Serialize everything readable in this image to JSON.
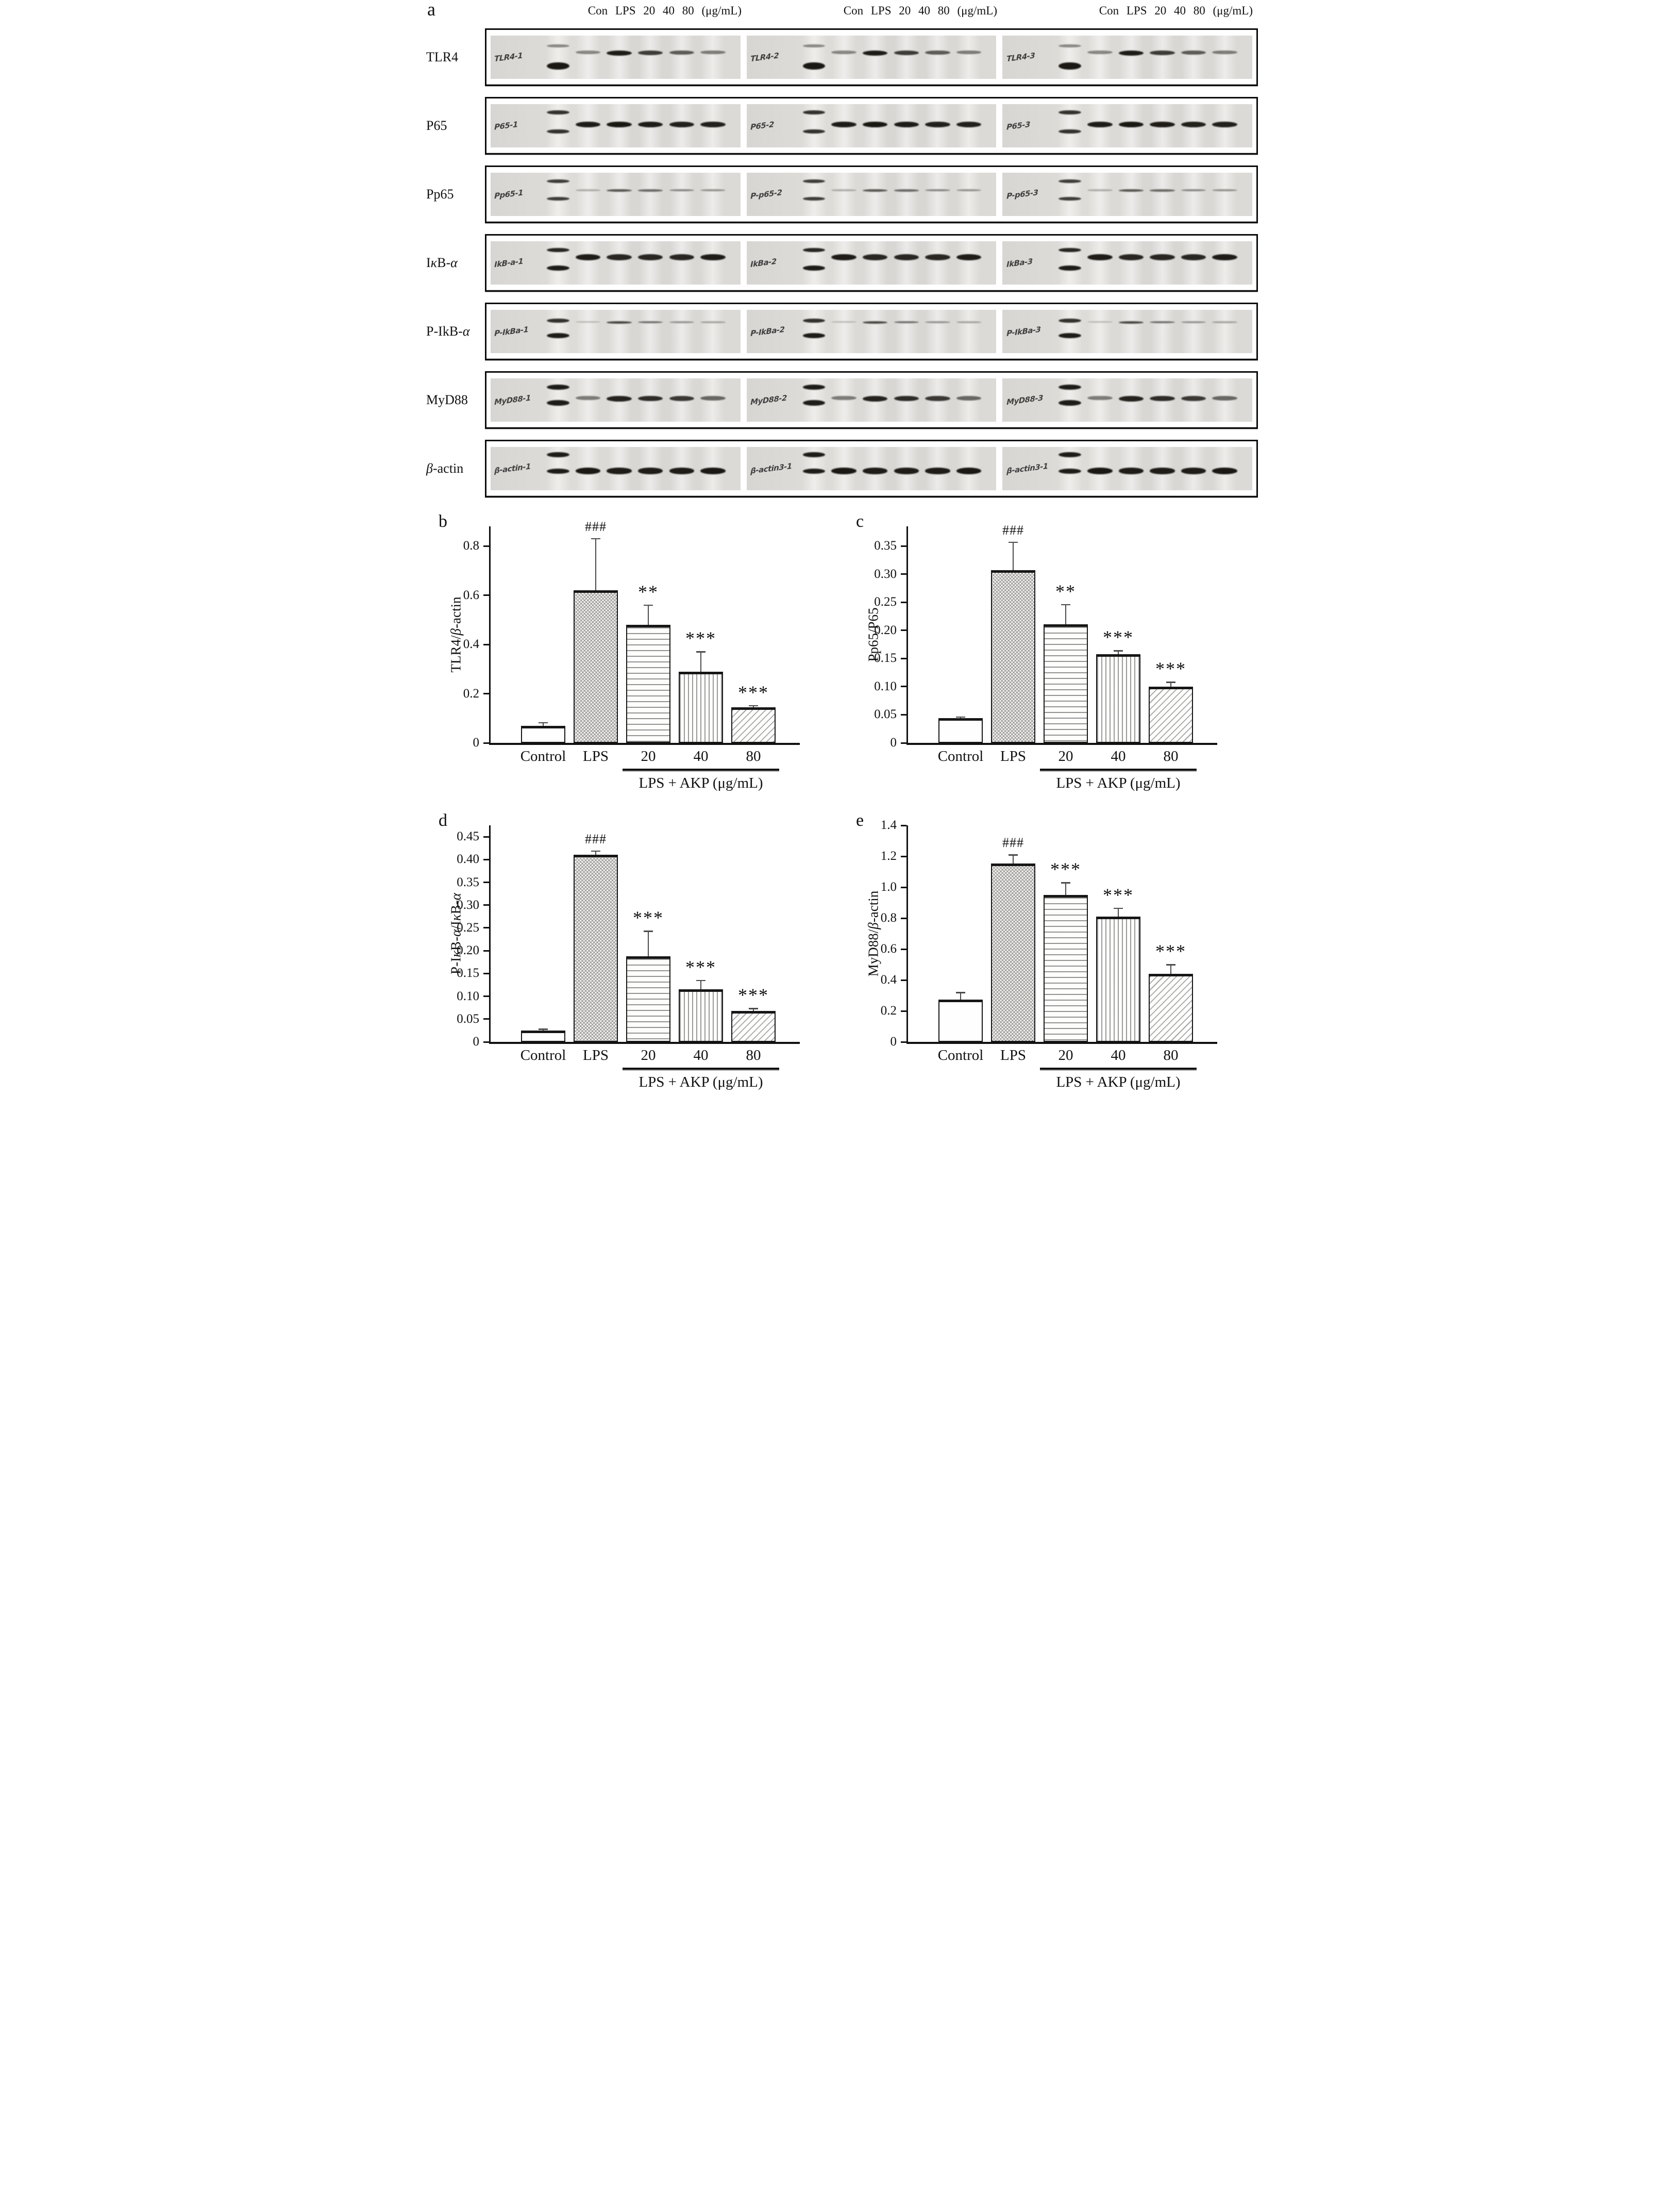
{
  "panel_a": {
    "label": "a",
    "column_headers": [
      "Con LPS 20  40  80 (μg/mL)",
      "Con LPS 20  40  80 (μg/mL)",
      "Con LPS 20  40  80 (μg/mL)"
    ],
    "rows": [
      {
        "label": "TLR4",
        "replicates": [
          "TLR4-1",
          "TLR4-2",
          "TLR4-3"
        ],
        "ladder": {
          "top_y": 20,
          "top_h": 6,
          "top_s": 0.45,
          "bot_y": 62,
          "bot_h": 14,
          "bot_s": 0.97
        },
        "bands": {
          "y": 34,
          "h": 9,
          "strengths": [
            0.45,
            0.95,
            0.8,
            0.65,
            0.5
          ]
        }
      },
      {
        "label": "P65",
        "replicates": [
          "P65-1",
          "P65-2",
          "P65-3"
        ],
        "ladder": {
          "top_y": 14,
          "top_h": 8,
          "top_s": 0.85,
          "bot_y": 58,
          "bot_h": 8,
          "bot_s": 0.85
        },
        "bands": {
          "y": 40,
          "h": 10,
          "strengths": [
            0.95,
            0.97,
            0.95,
            0.93,
            0.93
          ]
        }
      },
      {
        "label": "Pp65",
        "replicates": [
          "Pp65-1",
          "P-p65-2",
          "P-p65-3"
        ],
        "ladder": {
          "top_y": 16,
          "top_h": 7,
          "top_s": 0.8,
          "bot_y": 56,
          "bot_h": 7,
          "bot_s": 0.8
        },
        "bands": {
          "y": 38,
          "h": 5,
          "strengths": [
            0.28,
            0.68,
            0.58,
            0.45,
            0.4
          ]
        }
      },
      {
        "label": "IκB-α",
        "replicates": [
          "IkB-a-1",
          "IkBa-2",
          "IkBa-3"
        ],
        "ladder": {
          "top_y": 16,
          "top_h": 8,
          "top_s": 0.9,
          "bot_y": 56,
          "bot_h": 10,
          "bot_s": 0.95
        },
        "bands": {
          "y": 30,
          "h": 11,
          "strengths": [
            0.95,
            0.9,
            0.9,
            0.9,
            0.95
          ]
        }
      },
      {
        "label": "P-IkB-α",
        "replicates": [
          "P-IkBa-1",
          "P-IkBa-2",
          "P-IkBa-3"
        ],
        "ladder": {
          "top_y": 20,
          "top_h": 8,
          "top_s": 0.85,
          "bot_y": 54,
          "bot_h": 10,
          "bot_s": 0.95
        },
        "bands": {
          "y": 26,
          "h": 5,
          "strengths": [
            0.22,
            0.75,
            0.55,
            0.38,
            0.3
          ]
        }
      },
      {
        "label": "MyD88",
        "replicates": [
          "MyD88-1",
          "MyD88-2",
          "MyD88-3"
        ],
        "ladder": {
          "top_y": 14,
          "top_h": 10,
          "top_s": 0.95,
          "bot_y": 50,
          "bot_h": 11,
          "bot_s": 0.95
        },
        "bands": {
          "y": 40,
          "h": 10,
          "strengths": [
            0.5,
            0.92,
            0.88,
            0.82,
            0.6
          ]
        }
      },
      {
        "label": "β-actin",
        "replicates": [
          "β-actin-1",
          "β-actin3-1",
          "β-actin3-1"
        ],
        "ladder": {
          "top_y": 12,
          "top_h": 10,
          "top_s": 0.95,
          "bot_y": 50,
          "bot_h": 10,
          "bot_s": 0.95
        },
        "bands": {
          "y": 48,
          "h": 11,
          "strengths": [
            0.97,
            0.95,
            0.95,
            0.95,
            0.97
          ]
        }
      }
    ]
  },
  "chart_data": [
    {
      "type": "bar",
      "panel": "b",
      "title": "",
      "ylabel": "TLR4/β-actin",
      "xlabel": "",
      "categories": [
        "Control",
        "LPS",
        "20",
        "40",
        "80"
      ],
      "values": [
        0.07,
        0.62,
        0.48,
        0.29,
        0.145
      ],
      "errors": [
        0.012,
        0.21,
        0.08,
        0.08,
        0.006
      ],
      "annotations": [
        "",
        "###",
        "**",
        "***",
        "***"
      ],
      "yticks": [
        0,
        0.2,
        0.4,
        0.6,
        0.8
      ],
      "ytick_labels": [
        "0",
        "0.2",
        "0.4",
        "0.6",
        "0.8"
      ],
      "ylim": [
        0,
        0.88
      ],
      "group_label": "LPS + AKP (μg/mL)",
      "group_span": [
        2,
        4
      ],
      "patterns": [
        "plain",
        "crosshatch",
        "hlines",
        "vlines",
        "diag"
      ],
      "grid": false,
      "legend": false
    },
    {
      "type": "bar",
      "panel": "c",
      "title": "",
      "ylabel": "Pp65/P65",
      "xlabel": "",
      "categories": [
        "Control",
        "LPS",
        "20",
        "40",
        "80"
      ],
      "values": [
        0.044,
        0.307,
        0.211,
        0.158,
        0.1
      ],
      "errors": [
        0.002,
        0.05,
        0.035,
        0.006,
        0.008
      ],
      "annotations": [
        "",
        "###",
        "**",
        "***",
        "***"
      ],
      "yticks": [
        0,
        0.05,
        0.1,
        0.15,
        0.2,
        0.25,
        0.3,
        0.35
      ],
      "ytick_labels": [
        "0",
        "0.05",
        "0.10",
        "0.15",
        "0.20",
        "0.25",
        "0.30",
        "0.35"
      ],
      "ylim": [
        0,
        0.385
      ],
      "group_label": "LPS + AKP (μg/mL)",
      "group_span": [
        2,
        4
      ],
      "patterns": [
        "plain",
        "crosshatch",
        "hlines",
        "vlines",
        "diag"
      ],
      "grid": false,
      "legend": false
    },
    {
      "type": "bar",
      "panel": "d",
      "title": "",
      "ylabel": "P-IκB-α/IκB-α",
      "xlabel": "",
      "categories": [
        "Control",
        "LPS",
        "20",
        "40",
        "80"
      ],
      "values": [
        0.025,
        0.411,
        0.188,
        0.115,
        0.068
      ],
      "errors": [
        0.003,
        0.008,
        0.055,
        0.02,
        0.005
      ],
      "annotations": [
        "",
        "###",
        "***",
        "***",
        "***"
      ],
      "yticks": [
        0,
        0.05,
        0.1,
        0.15,
        0.2,
        0.25,
        0.3,
        0.35,
        0.4,
        0.45
      ],
      "ytick_labels": [
        "0",
        "0.05",
        "0.10",
        "0.15",
        "0.20",
        "0.25",
        "0.30",
        "0.35",
        "0.40",
        "0.45"
      ],
      "ylim": [
        0,
        0.475
      ],
      "group_label": "LPS + AKP (μg/mL)",
      "group_span": [
        2,
        4
      ],
      "patterns": [
        "plain",
        "crosshatch",
        "hlines",
        "vlines",
        "diag"
      ],
      "grid": false,
      "legend": false
    },
    {
      "type": "bar",
      "panel": "e",
      "title": "",
      "ylabel": "MyD88/β-actin",
      "xlabel": "",
      "categories": [
        "Control",
        "LPS",
        "20",
        "40",
        "80"
      ],
      "values": [
        0.275,
        1.155,
        0.95,
        0.81,
        0.44
      ],
      "errors": [
        0.045,
        0.055,
        0.08,
        0.055,
        0.06
      ],
      "annotations": [
        "",
        "###",
        "***",
        "***",
        "***"
      ],
      "yticks": [
        0,
        0.2,
        0.4,
        0.6,
        0.8,
        1.0,
        1.2,
        1.4
      ],
      "ytick_labels": [
        "0",
        "0.2",
        "0.4",
        "0.6",
        "0.8",
        "1.0",
        "1.2",
        "1.4"
      ],
      "ylim": [
        0,
        1.4
      ],
      "group_label": "LPS + AKP (μg/mL)",
      "group_span": [
        2,
        4
      ],
      "patterns": [
        "plain",
        "crosshatch",
        "hlines",
        "vlines",
        "diag"
      ],
      "grid": false,
      "legend": false
    }
  ]
}
